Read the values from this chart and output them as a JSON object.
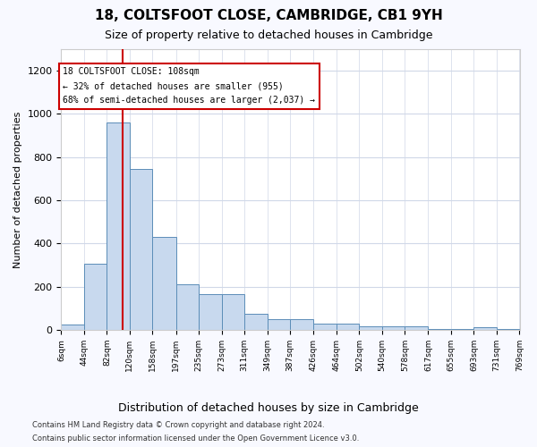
{
  "title": "18, COLTSFOOT CLOSE, CAMBRIDGE, CB1 9YH",
  "subtitle": "Size of property relative to detached houses in Cambridge",
  "xlabel": "Distribution of detached houses by size in Cambridge",
  "ylabel": "Number of detached properties",
  "bar_color": "#c8d9ee",
  "bar_edge_color": "#5b8db8",
  "grid_color": "#d0d8e8",
  "annotation_line_color": "#cc0000",
  "annotation_box_color": "#cc0000",
  "annotation_text": "18 COLTSFOOT CLOSE: 108sqm\n← 32% of detached houses are smaller (955)\n68% of semi-detached houses are larger (2,037) →",
  "property_size_sqm": 108,
  "bin_edges": [
    6,
    44,
    82,
    120,
    158,
    197,
    235,
    273,
    311,
    349,
    387,
    426,
    464,
    502,
    540,
    578,
    617,
    655,
    693,
    731,
    769
  ],
  "bar_heights": [
    25,
    305,
    960,
    743,
    430,
    210,
    165,
    165,
    75,
    48,
    48,
    30,
    30,
    18,
    18,
    18,
    5,
    5,
    14,
    5
  ],
  "ylim": [
    0,
    1300
  ],
  "yticks": [
    0,
    200,
    400,
    600,
    800,
    1000,
    1200
  ],
  "footer_line1": "Contains HM Land Registry data © Crown copyright and database right 2024.",
  "footer_line2": "Contains public sector information licensed under the Open Government Licence v3.0.",
  "background_color": "#f8f9ff",
  "plot_bg_color": "#ffffff"
}
